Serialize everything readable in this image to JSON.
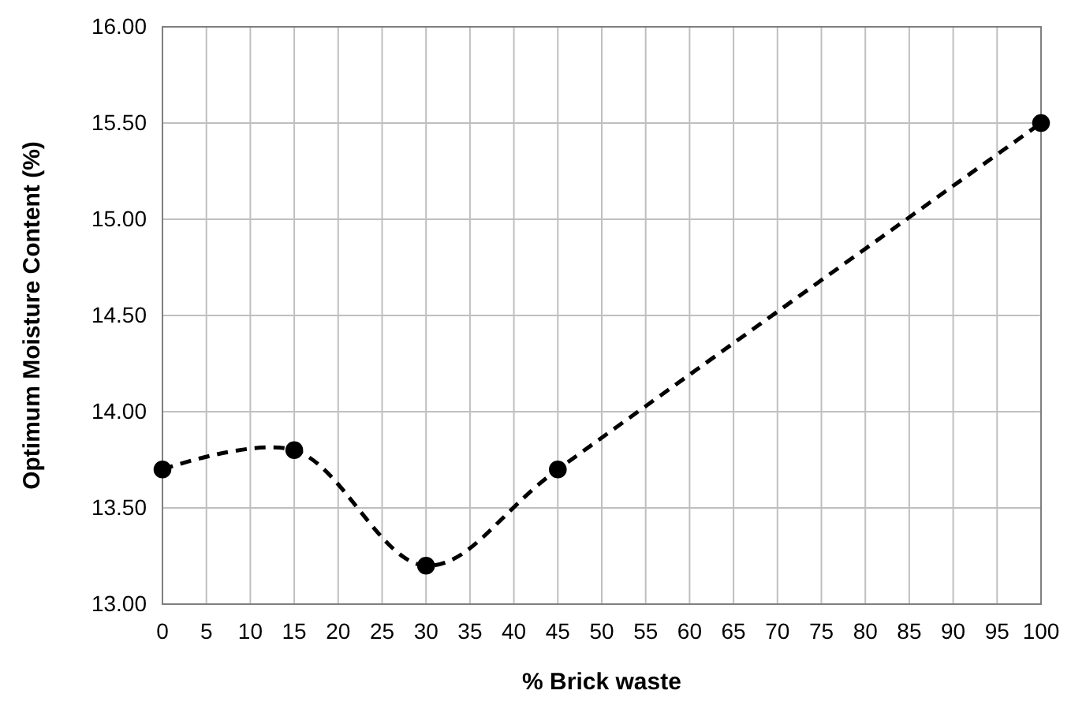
{
  "chart_data": {
    "type": "line",
    "xlabel": "% Brick waste",
    "ylabel": "Optimum Moisture Content (%)",
    "x": [
      0,
      15,
      30,
      45,
      100
    ],
    "series": [
      {
        "color": "#000000",
        "values": [
          13.7,
          13.8,
          13.2,
          13.7,
          15.5
        ]
      }
    ],
    "xlim": [
      0,
      100
    ],
    "xticks": [
      0,
      5,
      10,
      15,
      20,
      25,
      30,
      35,
      40,
      45,
      50,
      55,
      60,
      65,
      70,
      75,
      80,
      85,
      90,
      95,
      100
    ],
    "ylim": [
      13,
      16
    ],
    "yticks": [
      {
        "value": 13,
        "label": "13.00"
      },
      {
        "value": 13.5,
        "label": "13.50"
      },
      {
        "value": 14,
        "label": "14.00"
      },
      {
        "value": 14.5,
        "label": "14.50"
      },
      {
        "value": 15,
        "label": "15.00"
      },
      {
        "value": 15.5,
        "label": "15.50"
      },
      {
        "value": 16,
        "label": "16.00"
      }
    ],
    "grid": true,
    "marker": "circle",
    "line_style": "dashed"
  }
}
